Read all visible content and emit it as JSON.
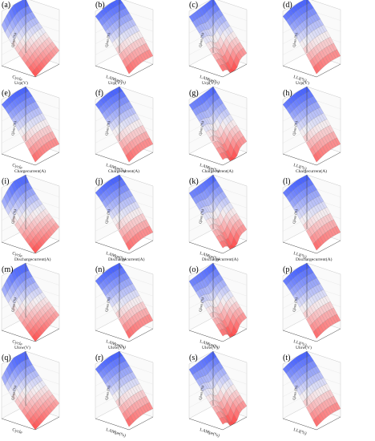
{
  "figure": {
    "rows": [
      [
        "(a)",
        "(b)",
        "(c)",
        "(d)"
      ],
      [
        "(e)",
        "(f)",
        "(g)",
        "(h)"
      ],
      [
        "(i)",
        "(j)",
        "(k)",
        "(l)"
      ],
      [
        "(m)",
        "(n)",
        "(o)",
        "(p)"
      ],
      [
        "(q)",
        "(r)",
        "(s)",
        "(t)"
      ]
    ],
    "colors": {
      "high": "#3f5bff",
      "mid": "#f4f1f4",
      "low": "#ff4a4a",
      "mesh": "#555555",
      "axis": "#444444"
    }
  },
  "chart_data": [
    {
      "id": "a",
      "label": "(a)",
      "type": "surface3d",
      "z_title": "Temperature(°C)",
      "x_title": "Cycle",
      "y_title": "Qloss (%)",
      "shape": "bulge"
    },
    {
      "id": "b",
      "label": "(b)",
      "type": "surface3d",
      "z_title": "Temperature(°C)",
      "x_title": "LAMpe(%)",
      "y_title": "Qloss (%)",
      "shape": "slope"
    },
    {
      "id": "c",
      "label": "(c)",
      "type": "surface3d",
      "z_title": "Temperature(°C)",
      "x_title": "LAMpe(%)",
      "y_title": "Qloss (%)",
      "shape": "valley"
    },
    {
      "id": "d",
      "label": "(d)",
      "type": "surface3d",
      "z_title": "Temperature(°C)",
      "x_title": "LLI(%)",
      "y_title": "Qloss (%)",
      "shape": "slope"
    },
    {
      "id": "e",
      "label": "(e)",
      "type": "surface3d",
      "z_title": "Ucp(V)",
      "x_title": "Cycle",
      "y_title": "Qloss (%)",
      "shape": "slope"
    },
    {
      "id": "f",
      "label": "(f)",
      "type": "surface3d",
      "z_title": "Ucp(V)",
      "x_title": "LAMpe(%)",
      "y_title": "Qloss (%)",
      "shape": "slope"
    },
    {
      "id": "g",
      "label": "(g)",
      "type": "surface3d",
      "z_title": "Ucp(V)",
      "x_title": "LAMpe(%)",
      "y_title": "Qloss (%)",
      "shape": "valley"
    },
    {
      "id": "h",
      "label": "(h)",
      "type": "surface3d",
      "z_title": "Ucp(V)",
      "x_title": "LLI(%)",
      "y_title": "Qloss (%)",
      "shape": "slope"
    },
    {
      "id": "i",
      "label": "(i)",
      "type": "surface3d",
      "z_title": "Chargecurrent(A)",
      "x_title": "Cycle",
      "y_title": "Qloss (%)",
      "shape": "bulge"
    },
    {
      "id": "j",
      "label": "(j)",
      "type": "surface3d",
      "z_title": "Chargecurrent(A)",
      "x_title": "LAMpe(%)",
      "y_title": "Qloss (%)",
      "shape": "slope"
    },
    {
      "id": "k",
      "label": "(k)",
      "type": "surface3d",
      "z_title": "Chargecurrent(A)",
      "x_title": "LAMpe(%)",
      "y_title": "Qloss (%)",
      "shape": "valley"
    },
    {
      "id": "l",
      "label": "(l)",
      "type": "surface3d",
      "z_title": "Chargecurrent(A)",
      "x_title": "LLI(%)",
      "y_title": "Qloss (%)",
      "shape": "slope"
    },
    {
      "id": "m",
      "label": "(m)",
      "type": "surface3d",
      "z_title": "Dischargecurrent(A)",
      "x_title": "Cycle",
      "y_title": "Qloss (%)",
      "shape": "bulge"
    },
    {
      "id": "n",
      "label": "(n)",
      "type": "surface3d",
      "z_title": "Dischargecurrent(A)",
      "x_title": "LAMpe(%)",
      "y_title": "Qloss (%)",
      "shape": "slope"
    },
    {
      "id": "o",
      "label": "(o)",
      "type": "surface3d",
      "z_title": "Dischargecurrent(A)",
      "x_title": "LAMpe(%)",
      "y_title": "Qloss (%)",
      "shape": "valley"
    },
    {
      "id": "p",
      "label": "(p)",
      "type": "surface3d",
      "z_title": "Dischargecurrent(A)",
      "x_title": "LLI(%)",
      "y_title": "Qloss (%)",
      "shape": "slope"
    },
    {
      "id": "q",
      "label": "(q)",
      "type": "surface3d",
      "z_title": "Ulow(V)",
      "x_title": "Cycle",
      "y_title": "Qloss (%)",
      "shape": "bulge"
    },
    {
      "id": "r",
      "label": "(r)",
      "type": "surface3d",
      "z_title": "Ulow(V)",
      "x_title": "LAMpe(%)",
      "y_title": "Qloss (%)",
      "shape": "slope"
    },
    {
      "id": "s",
      "label": "(s)",
      "type": "surface3d",
      "z_title": "Ulow(V)",
      "x_title": "LAMpe(%)",
      "y_title": "Qloss (%)",
      "shape": "valley"
    },
    {
      "id": "t",
      "label": "(t)",
      "type": "surface3d",
      "z_title": "Ulow(V)",
      "x_title": "LLI(%)",
      "y_title": "Qloss (%)",
      "shape": "slope"
    }
  ]
}
